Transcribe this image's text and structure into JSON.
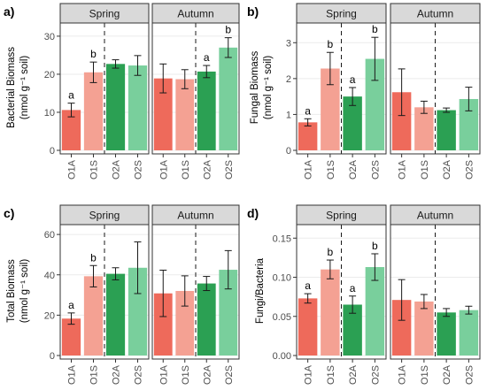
{
  "colors": {
    "O1A": "#ee6a5b",
    "O1S": "#f4a193",
    "O2A": "#2ba053",
    "O2S": "#79cf9c",
    "strip_fill": "#d9d9d9",
    "panel_border": "#333333",
    "grid": "#ebebeb"
  },
  "chart_data": [
    {
      "id": "a",
      "panel_label": "a)",
      "type": "bar",
      "ylabel_lines": [
        "Bacterial Biomass",
        "(nmol g⁻¹ soil)"
      ],
      "yticks": [
        "0",
        "10",
        "20",
        "30"
      ],
      "ylim": [
        0,
        33
      ],
      "facets": [
        {
          "name": "Spring",
          "categories": [
            "O1A",
            "O1S",
            "O2A",
            "O2S"
          ],
          "values": [
            10.6,
            20.5,
            22.7,
            22.3
          ],
          "errors": [
            1.8,
            2.7,
            1.1,
            2.6
          ],
          "sig": [
            "a",
            "b",
            "",
            ""
          ]
        },
        {
          "name": "Autumn",
          "categories": [
            "O1A",
            "O1S",
            "O2A",
            "O2S"
          ],
          "values": [
            18.9,
            18.7,
            20.7,
            27.0
          ],
          "errors": [
            3.8,
            2.5,
            1.6,
            2.6
          ],
          "sig": [
            "",
            "",
            "a",
            "b"
          ]
        }
      ]
    },
    {
      "id": "b",
      "panel_label": "b)",
      "type": "bar",
      "ylabel_lines": [
        "Fungal Biomass",
        "(nmol g⁻¹ soil)"
      ],
      "yticks": [
        "0",
        "1",
        "2",
        "3"
      ],
      "ylim": [
        0,
        3.5
      ],
      "facets": [
        {
          "name": "Spring",
          "categories": [
            "O1A",
            "O1S",
            "O2A",
            "O2S"
          ],
          "values": [
            0.78,
            2.28,
            1.5,
            2.55
          ],
          "errors": [
            0.1,
            0.45,
            0.25,
            0.6
          ],
          "sig": [
            "a",
            "b",
            "a",
            "b"
          ]
        },
        {
          "name": "Autumn",
          "categories": [
            "O1A",
            "O1S",
            "O2A",
            "O2S"
          ],
          "values": [
            1.62,
            1.2,
            1.12,
            1.43
          ],
          "errors": [
            0.65,
            0.17,
            0.06,
            0.33
          ],
          "sig": [
            "",
            "",
            "",
            ""
          ]
        }
      ]
    },
    {
      "id": "c",
      "panel_label": "c)",
      "type": "bar",
      "ylabel_lines": [
        "Total Biomass",
        "(nmol g⁻¹ soil)"
      ],
      "yticks": [
        "0",
        "20",
        "40",
        "60"
      ],
      "ylim": [
        0,
        64
      ],
      "facets": [
        {
          "name": "Spring",
          "categories": [
            "O1A",
            "O1S",
            "O2A",
            "O2S"
          ],
          "values": [
            18.3,
            39.3,
            40.5,
            43.5
          ],
          "errors": [
            2.8,
            5.3,
            3.0,
            12.8
          ],
          "sig": [
            "a",
            "b",
            "",
            ""
          ]
        },
        {
          "name": "Autumn",
          "categories": [
            "O1A",
            "O1S",
            "O2A",
            "O2S"
          ],
          "values": [
            30.8,
            32.0,
            35.7,
            42.5
          ],
          "errors": [
            11.5,
            7.5,
            3.5,
            9.5
          ],
          "sig": [
            "",
            "",
            "",
            ""
          ]
        }
      ]
    },
    {
      "id": "d",
      "panel_label": "d)",
      "type": "bar",
      "ylabel_lines": [
        "Fungi/Bacteria"
      ],
      "yticks": [
        "0.00",
        "0.05",
        "0.10",
        "0.15"
      ],
      "ylim": [
        0,
        0.165
      ],
      "facets": [
        {
          "name": "Spring",
          "categories": [
            "O1A",
            "O1S",
            "O2A",
            "O2S"
          ],
          "values": [
            0.073,
            0.11,
            0.065,
            0.113
          ],
          "errors": [
            0.006,
            0.012,
            0.011,
            0.017
          ],
          "sig": [
            "a",
            "b",
            "a",
            "b"
          ]
        },
        {
          "name": "Autumn",
          "categories": [
            "O1A",
            "O1S",
            "O2A",
            "O2S"
          ],
          "values": [
            0.071,
            0.069,
            0.055,
            0.058
          ],
          "errors": [
            0.026,
            0.009,
            0.005,
            0.005
          ],
          "sig": [
            "",
            "",
            "",
            ""
          ]
        }
      ]
    }
  ]
}
